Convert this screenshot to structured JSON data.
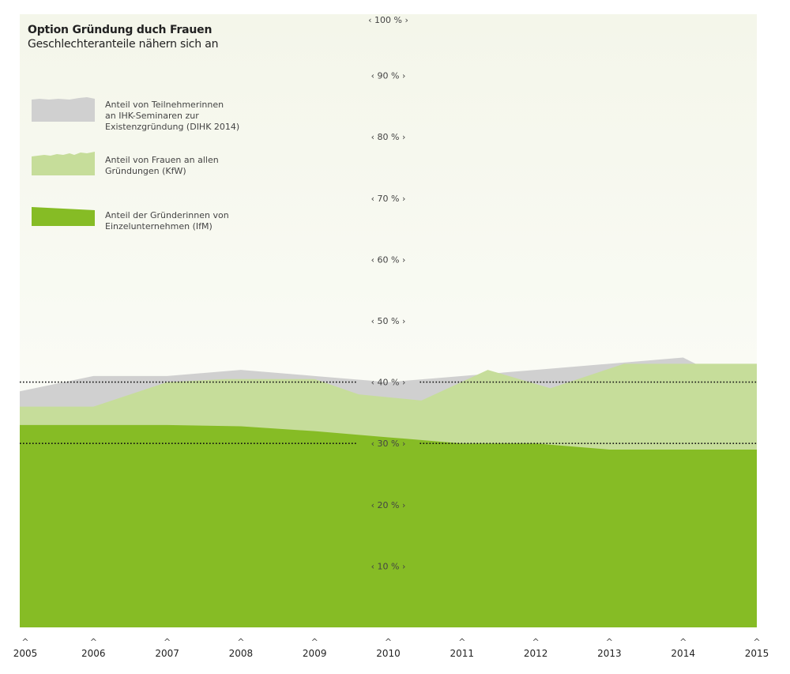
{
  "title": "Option Gründung duch Frauen",
  "subtitle": "Geschlechteranteile nähern sich an",
  "legend": {
    "items": [
      {
        "label_lines": [
          "Anteil von Teilnehmerinnen",
          "an IHK-Seminaren zur",
          "Existenzgründung (DIHK 2014)"
        ],
        "color": "#d0d0d0"
      },
      {
        "label_lines": [
          "Anteil von Frauen an allen",
          "Gründungen (KfW)"
        ],
        "color": "#c6dd9a"
      },
      {
        "label_lines": [
          "Anteil der Gründerinnen von",
          "Einzelunternehmen (IfM)"
        ],
        "color": "#86bc25"
      }
    ]
  },
  "colors": {
    "background_top": "#f4f6ea",
    "background_bottom": "#ffffff",
    "ihk": "#d0d0d0",
    "kfw": "#c6dd9a",
    "ifm": "#86bc25"
  },
  "chart_data": {
    "type": "area",
    "x": [
      2005,
      2006,
      2007,
      2008,
      2009,
      2010,
      2011,
      2012,
      2013,
      2014,
      2015
    ],
    "ylim": [
      0,
      100
    ],
    "y_ticks": [
      {
        "value": 10,
        "label": "‹ 10 % ›"
      },
      {
        "value": 20,
        "label": "‹ 20 % ›"
      },
      {
        "value": 30,
        "label": "‹ 30 % ›"
      },
      {
        "value": 40,
        "label": "‹ 40 % ›"
      },
      {
        "value": 50,
        "label": "‹ 50 % ›"
      },
      {
        "value": 60,
        "label": "‹ 60 % ›"
      },
      {
        "value": 70,
        "label": "‹ 70 % ›"
      },
      {
        "value": 80,
        "label": "‹ 80 % ›"
      },
      {
        "value": 90,
        "label": "‹ 90 % ›"
      },
      {
        "value": 100,
        "label": "‹ 100 % ›"
      }
    ],
    "x_tick_mark": "^",
    "reference_lines": [
      30,
      40
    ],
    "series": [
      {
        "name": "Anteil von Teilnehmerinnen an IHK-Seminaren zur Existenzgründung (DIHK 2014)",
        "color": "#d0d0d0",
        "x": [
          2005,
          2006,
          2007,
          2008,
          2009,
          2010,
          2011,
          2012,
          2013,
          2014,
          2015
        ],
        "values": [
          38.5,
          41,
          41,
          42,
          41,
          40,
          41,
          42,
          43,
          44,
          38
        ]
      },
      {
        "name": "Anteil von Frauen an allen Gründungen (KfW)",
        "color": "#c6dd9a",
        "x": [
          2005,
          2006,
          2007,
          2007.8,
          2009,
          2009.6,
          2010.45,
          2011.35,
          2012.2,
          2013.2,
          2014,
          2015
        ],
        "values": [
          36,
          36,
          40,
          40.5,
          40.5,
          38,
          37,
          42,
          39,
          43,
          43,
          43
        ]
      },
      {
        "name": "Anteil der Gründerinnen von Einzelunternehmen (IfM)",
        "color": "#86bc25",
        "x": [
          2005,
          2006,
          2007,
          2008,
          2009,
          2010,
          2011,
          2012,
          2013,
          2014,
          2015
        ],
        "values": [
          33,
          33,
          33,
          32.8,
          32,
          31,
          30,
          30,
          29,
          29,
          29
        ]
      }
    ]
  }
}
